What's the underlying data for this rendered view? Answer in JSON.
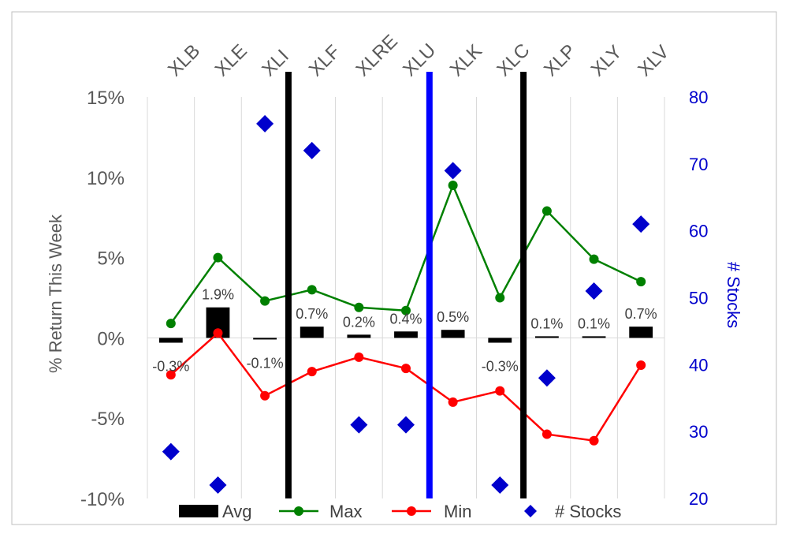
{
  "chart_data": {
    "type": "combo",
    "categories": [
      "XLB",
      "XLE",
      "XLI",
      "XLF",
      "XLRE",
      "XLU",
      "XLK",
      "XLC",
      "XLP",
      "XLY",
      "XLV"
    ],
    "series": [
      {
        "name": "Avg",
        "type": "bar",
        "axis": "left",
        "values": [
          -0.3,
          1.9,
          -0.1,
          0.7,
          0.2,
          0.4,
          0.5,
          -0.3,
          0.1,
          0.1,
          0.7
        ],
        "labels": [
          "-0.3%",
          "1.9%",
          "-0.1%",
          "0.7%",
          "0.2%",
          "0.4%",
          "0.5%",
          "-0.3%",
          "0.1%",
          "0.1%",
          "0.7%"
        ]
      },
      {
        "name": "Max",
        "type": "line",
        "axis": "left",
        "values": [
          0.9,
          5.0,
          2.3,
          3.0,
          1.9,
          1.7,
          9.5,
          2.5,
          7.9,
          4.9,
          3.5
        ]
      },
      {
        "name": "Min",
        "type": "line",
        "axis": "left",
        "values": [
          -2.3,
          0.3,
          -3.6,
          -2.1,
          -1.2,
          -1.9,
          -4.0,
          -3.3,
          -6.0,
          -6.4,
          -1.7
        ]
      },
      {
        "name": "# Stocks",
        "type": "scatter",
        "axis": "right",
        "values": [
          27,
          22,
          76,
          72,
          31,
          31,
          69,
          22,
          38,
          51,
          61
        ]
      }
    ],
    "y_left": {
      "label": "% Return This Week",
      "min": -10,
      "max": 15,
      "ticks": [
        -10,
        -5,
        0,
        5,
        10,
        15
      ],
      "tick_labels": [
        "-10%",
        "-5%",
        "0%",
        "5%",
        "10%",
        "15%"
      ]
    },
    "y_right": {
      "label": "# Stocks",
      "min": 20,
      "max": 80,
      "ticks": [
        20,
        30,
        40,
        50,
        60,
        70,
        80
      ],
      "tick_labels": [
        "20",
        "30",
        "40",
        "50",
        "60",
        "70",
        "80"
      ]
    },
    "dividers": [
      {
        "between": [
          "XLI",
          "XLF"
        ],
        "color": "#000000"
      },
      {
        "between": [
          "XLU",
          "XLK"
        ],
        "color": "#0000ff"
      },
      {
        "between": [
          "XLC",
          "XLP"
        ],
        "color": "#000000"
      }
    ],
    "grid": "vertical",
    "legend_position": "bottom",
    "colors": {
      "avg": "#000000",
      "max": "#008000",
      "min": "#ff0000",
      "stocks": "#0000cc",
      "left_axis_text": "#595959",
      "right_axis_text": "#0000cc"
    }
  }
}
